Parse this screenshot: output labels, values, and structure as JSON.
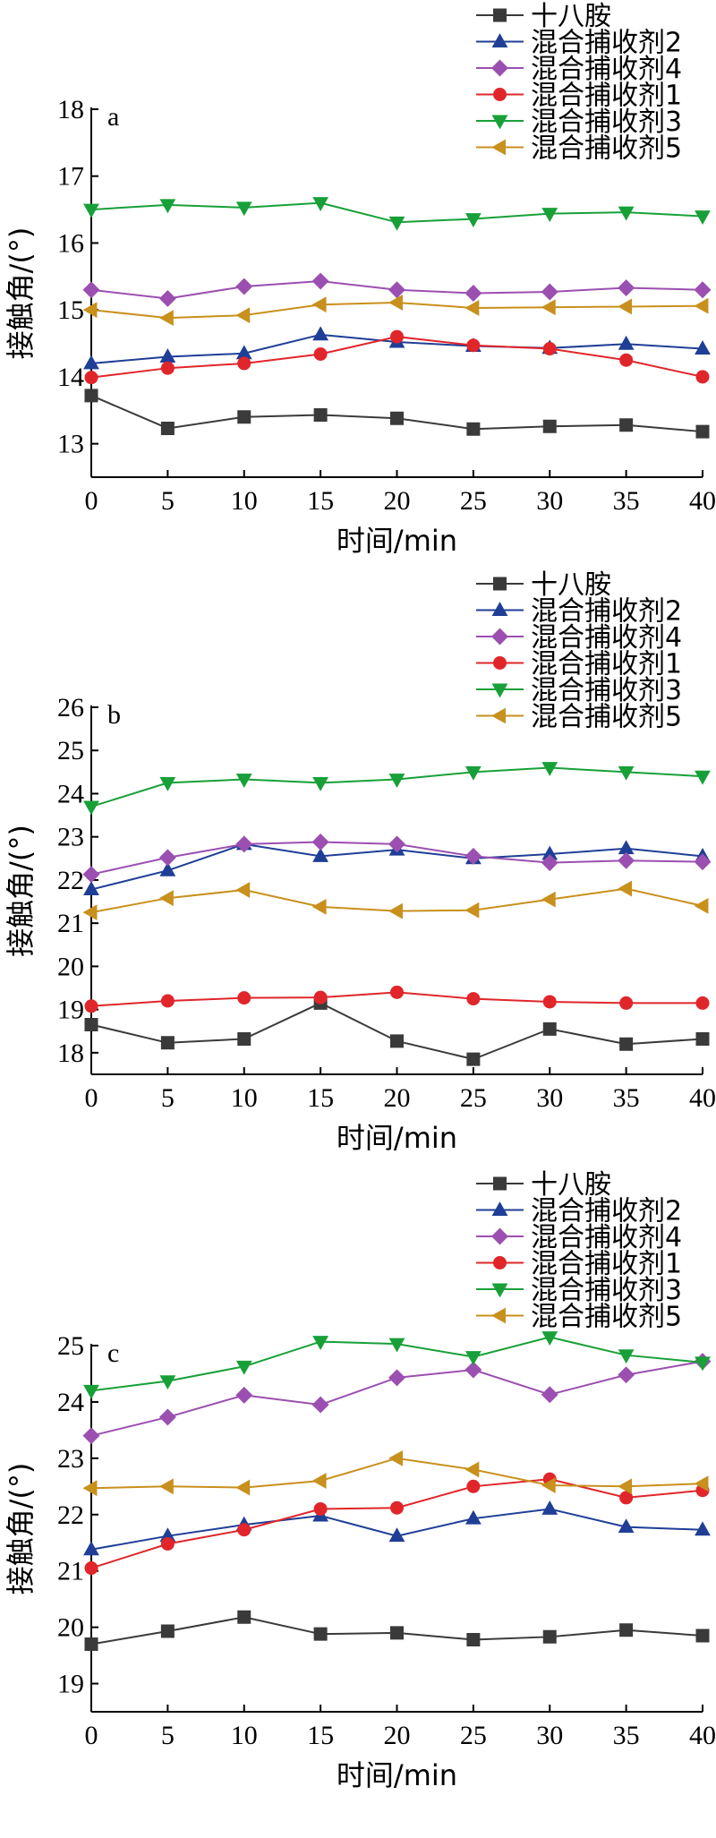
{
  "colors": {
    "十八胺": "#3a3a3a",
    "混合捕收剂2": "#1f3e96",
    "混合捕收剂4": "#9b4fb0",
    "混合捕收剂1": "#e0262a",
    "混合捕收剂3": "#18a038",
    "混合捕收剂5": "#c8901c"
  },
  "markers": {
    "十八胺": "square",
    "混合捕收剂2": "triangle-up",
    "混合捕收剂4": "diamond",
    "混合捕收剂1": "circle",
    "混合捕收剂3": "triangle-down",
    "混合捕收剂5": "triangle-left"
  },
  "chart_data": [
    {
      "type": "line",
      "panel_label": "a",
      "xlabel": "时间/min",
      "ylabel": "接触角/(°)",
      "x": [
        0,
        5,
        10,
        15,
        20,
        25,
        30,
        35,
        40
      ],
      "xlim": [
        0,
        40
      ],
      "ylim": [
        12.5,
        18
      ],
      "yticks": [
        13,
        14,
        15,
        16,
        17,
        18
      ],
      "legend_position": "top-right",
      "series": [
        {
          "name": "十八胺",
          "values": [
            13.72,
            13.23,
            13.4,
            13.43,
            13.38,
            13.22,
            13.26,
            13.28,
            13.18
          ]
        },
        {
          "name": "混合捕收剂2",
          "values": [
            14.2,
            14.3,
            14.35,
            14.63,
            14.52,
            14.46,
            14.43,
            14.49,
            14.42
          ]
        },
        {
          "name": "混合捕收剂4",
          "values": [
            15.3,
            15.17,
            15.35,
            15.43,
            15.3,
            15.25,
            15.27,
            15.33,
            15.3
          ]
        },
        {
          "name": "混合捕收剂1",
          "values": [
            13.99,
            14.13,
            14.2,
            14.34,
            14.6,
            14.47,
            14.42,
            14.25,
            14.0
          ]
        },
        {
          "name": "混合捕收剂3",
          "values": [
            16.5,
            16.57,
            16.53,
            16.6,
            16.31,
            16.36,
            16.44,
            16.46,
            16.4
          ]
        },
        {
          "name": "混合捕收剂5",
          "values": [
            15.0,
            14.88,
            14.92,
            15.08,
            15.11,
            15.03,
            15.04,
            15.05,
            15.06
          ]
        }
      ]
    },
    {
      "type": "line",
      "panel_label": "b",
      "xlabel": "时间/min",
      "ylabel": "接触角/(°)",
      "x": [
        0,
        5,
        10,
        15,
        20,
        25,
        30,
        35,
        40
      ],
      "xlim": [
        0,
        40
      ],
      "ylim": [
        17.5,
        26
      ],
      "yticks": [
        18,
        19,
        20,
        21,
        22,
        23,
        24,
        25,
        26
      ],
      "legend_position": "top-right",
      "series": [
        {
          "name": "十八胺",
          "values": [
            18.65,
            18.23,
            18.32,
            19.15,
            18.27,
            17.85,
            18.55,
            18.2,
            18.32
          ]
        },
        {
          "name": "混合捕收剂2",
          "values": [
            21.78,
            22.22,
            22.83,
            22.55,
            22.7,
            22.5,
            22.6,
            22.73,
            22.55
          ]
        },
        {
          "name": "混合捕收剂4",
          "values": [
            22.13,
            22.52,
            22.83,
            22.88,
            22.83,
            22.55,
            22.4,
            22.45,
            22.42
          ]
        },
        {
          "name": "混合捕收剂1",
          "values": [
            19.08,
            19.2,
            19.27,
            19.28,
            19.4,
            19.25,
            19.18,
            19.15,
            19.15
          ]
        },
        {
          "name": "混合捕收剂3",
          "values": [
            23.7,
            24.25,
            24.33,
            24.25,
            24.33,
            24.5,
            24.6,
            24.5,
            24.4
          ]
        },
        {
          "name": "混合捕收剂5",
          "values": [
            21.25,
            21.58,
            21.77,
            21.38,
            21.28,
            21.3,
            21.55,
            21.8,
            21.4
          ]
        }
      ]
    },
    {
      "type": "line",
      "panel_label": "c",
      "xlabel": "时间/min",
      "ylabel": "接触角/(°)",
      "x": [
        0,
        5,
        10,
        15,
        20,
        25,
        30,
        35,
        40
      ],
      "xlim": [
        0,
        40
      ],
      "ylim": [
        18.5,
        25
      ],
      "yticks": [
        19,
        20,
        21,
        22,
        23,
        24,
        25
      ],
      "legend_position": "top-right",
      "series": [
        {
          "name": "十八胺",
          "values": [
            19.7,
            19.93,
            20.18,
            19.88,
            19.9,
            19.78,
            19.83,
            19.95,
            19.85
          ]
        },
        {
          "name": "混合捕收剂2",
          "values": [
            21.38,
            21.62,
            21.82,
            21.98,
            21.62,
            21.93,
            22.1,
            21.78,
            21.73
          ]
        },
        {
          "name": "混合捕收剂4",
          "values": [
            23.4,
            23.73,
            24.12,
            23.95,
            24.43,
            24.57,
            24.13,
            24.48,
            24.72
          ]
        },
        {
          "name": "混合捕收剂1",
          "values": [
            21.05,
            21.48,
            21.73,
            22.1,
            22.12,
            22.5,
            22.63,
            22.3,
            22.43
          ]
        },
        {
          "name": "混合捕收剂3",
          "values": [
            24.2,
            24.37,
            24.63,
            25.07,
            25.03,
            24.8,
            25.15,
            24.83,
            24.7
          ]
        },
        {
          "name": "混合捕收剂5",
          "values": [
            22.47,
            22.5,
            22.48,
            22.6,
            23.0,
            22.8,
            22.52,
            22.5,
            22.55
          ]
        }
      ]
    }
  ]
}
